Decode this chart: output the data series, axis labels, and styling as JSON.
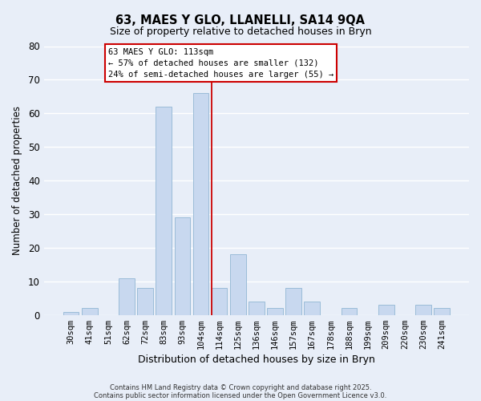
{
  "title": "63, MAES Y GLO, LLANELLI, SA14 9QA",
  "subtitle": "Size of property relative to detached houses in Bryn",
  "xlabel": "Distribution of detached houses by size in Bryn",
  "ylabel": "Number of detached properties",
  "bar_color": "#c8d8ef",
  "bar_edge_color": "#9bbcd8",
  "categories": [
    "30sqm",
    "41sqm",
    "51sqm",
    "62sqm",
    "72sqm",
    "83sqm",
    "93sqm",
    "104sqm",
    "114sqm",
    "125sqm",
    "136sqm",
    "146sqm",
    "157sqm",
    "167sqm",
    "178sqm",
    "188sqm",
    "199sqm",
    "209sqm",
    "220sqm",
    "230sqm",
    "241sqm"
  ],
  "values": [
    1,
    2,
    0,
    11,
    8,
    62,
    29,
    66,
    8,
    18,
    4,
    2,
    8,
    4,
    0,
    2,
    0,
    3,
    0,
    3,
    2
  ],
  "ylim": [
    0,
    80
  ],
  "yticks": [
    0,
    10,
    20,
    30,
    40,
    50,
    60,
    70,
    80
  ],
  "vline_index": 8,
  "vline_color": "#cc0000",
  "annotation_title": "63 MAES Y GLO: 113sqm",
  "annotation_line1": "← 57% of detached houses are smaller (132)",
  "annotation_line2": "24% of semi-detached houses are larger (55) →",
  "annotation_box_color": "#ffffff",
  "annotation_box_edge": "#cc0000",
  "footer1": "Contains HM Land Registry data © Crown copyright and database right 2025.",
  "footer2": "Contains public sector information licensed under the Open Government Licence v3.0.",
  "background_color": "#e8eef8",
  "grid_color": "#ffffff"
}
